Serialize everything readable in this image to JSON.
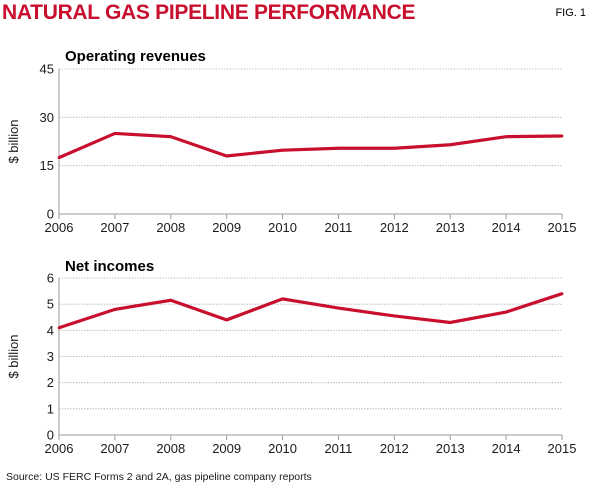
{
  "header": {
    "title": "NATURAL GAS PIPELINE PERFORMANCE",
    "fig_label": "FIG. 1"
  },
  "colors": {
    "accent": "#c8102e",
    "line": "#c8102e",
    "axis": "#9a9a9a",
    "grid": "#a0a0a0"
  },
  "source": "Source: US FERC Forms 2 and 2A, gas pipeline company reports",
  "chart_data": [
    {
      "type": "line",
      "title": "Operating revenues",
      "ylabel": "$ billion",
      "xlabel": "",
      "ylim": [
        0,
        45
      ],
      "yticks": [
        0,
        15,
        30,
        45
      ],
      "ytick_labels": [
        "0",
        "15",
        "30",
        "45"
      ],
      "x": [
        2006,
        2007,
        2008,
        2009,
        2010,
        2011,
        2012,
        2013,
        2014,
        2015
      ],
      "xtick_labels": [
        "2006",
        "2007",
        "2008",
        "2009",
        "2010",
        "2011",
        "2012",
        "2013",
        "2014",
        "2015"
      ],
      "values": [
        17.5,
        25,
        24,
        18,
        19.8,
        20.4,
        20.4,
        21.5,
        24,
        24.2
      ]
    },
    {
      "type": "line",
      "title": "Net incomes",
      "ylabel": "$ billion",
      "xlabel": "",
      "ylim": [
        0,
        6
      ],
      "yticks": [
        0,
        1,
        2,
        3,
        4,
        5,
        6
      ],
      "ytick_labels": [
        "0",
        "1",
        "2",
        "3",
        "4",
        "5",
        "6"
      ],
      "x": [
        2006,
        2007,
        2008,
        2009,
        2010,
        2011,
        2012,
        2013,
        2014,
        2015
      ],
      "xtick_labels": [
        "2006",
        "2007",
        "2008",
        "2009",
        "2010",
        "2011",
        "2012",
        "2013",
        "2014",
        "2015"
      ],
      "values": [
        4.1,
        4.8,
        5.15,
        4.4,
        5.2,
        4.85,
        4.55,
        4.3,
        4.7,
        5.4
      ]
    }
  ]
}
